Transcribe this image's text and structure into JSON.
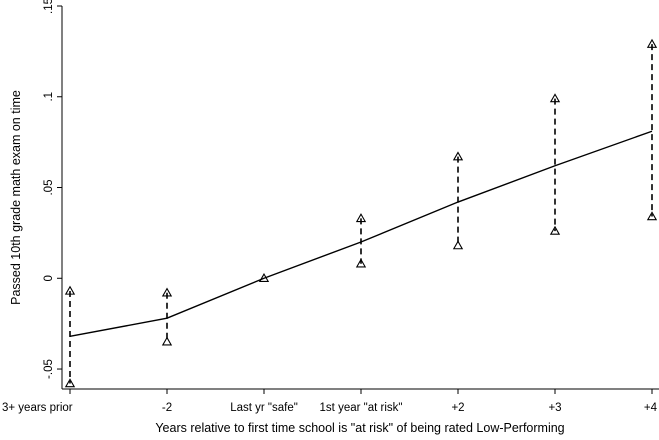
{
  "chart_data": {
    "type": "line",
    "title": "",
    "xlabel": "Years relative to first time school is \"at risk\" of being rated Low-Performing",
    "ylabel": "Passed 10th grade math exam on time",
    "categories": [
      "3+ years prior",
      "-2",
      "Last yr \"safe\"",
      "1st year \"at risk\"",
      "+2",
      "+3",
      "+4"
    ],
    "ylim": [
      -0.061,
      0.15
    ],
    "yticks": [
      {
        "value": -0.05,
        "label": "-.05"
      },
      {
        "value": 0,
        "label": "0"
      },
      {
        "value": 0.05,
        "label": ".05"
      },
      {
        "value": 0.1,
        "label": ".1"
      },
      {
        "value": 0.15,
        "label": ".15"
      }
    ],
    "grid": false,
    "legend": "none",
    "series": [
      {
        "style": "solid line",
        "values": [
          -0.032,
          -0.022,
          0.0,
          0.02,
          0.042,
          0.062,
          0.081
        ]
      },
      {
        "style": "dashed interval with triangle markers",
        "upper": [
          -0.007,
          -0.008,
          0.0,
          0.033,
          0.067,
          0.099,
          0.129
        ],
        "lower": [
          -0.058,
          -0.035,
          0.0,
          0.008,
          0.018,
          0.026,
          0.034
        ]
      }
    ],
    "colors": {
      "line": "#000000",
      "background": "#ffffff"
    }
  }
}
